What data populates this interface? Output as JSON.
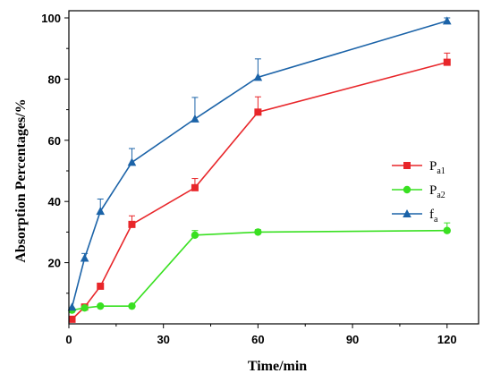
{
  "chart_data": {
    "type": "line",
    "xlabel": "Time/min",
    "ylabel": "Absorption Percentages/%",
    "xlim": [
      0,
      130
    ],
    "ylim": [
      0,
      100
    ],
    "x_ticks": [
      "0",
      "30",
      "60",
      "90",
      "120"
    ],
    "y_ticks": [
      "20",
      "40",
      "60",
      "80",
      "100"
    ],
    "legend_position": "right",
    "series": [
      {
        "name": "P",
        "subscript": "a1",
        "color": "#e8262a",
        "marker": "square",
        "x": [
          1,
          5,
          10,
          20,
          40,
          60,
          120
        ],
        "y": [
          1.5,
          5.5,
          12.3,
          32.5,
          44.5,
          69.2,
          85.5
        ],
        "error": [
          0,
          0.5,
          0,
          2.8,
          3.0,
          5.0,
          3.0
        ]
      },
      {
        "name": "P",
        "subscript": "a2",
        "color": "#39e021",
        "marker": "circle",
        "x": [
          1,
          5,
          10,
          20,
          40,
          60,
          120
        ],
        "y": [
          4.5,
          5.2,
          5.8,
          5.8,
          29.0,
          30.0,
          30.5
        ],
        "error": [
          0,
          0,
          0,
          0,
          1.5,
          0.8,
          2.5
        ]
      },
      {
        "name": "f",
        "subscript": "a",
        "color": "#1b63a8",
        "marker": "triangle",
        "x": [
          1,
          5,
          10,
          20,
          40,
          60,
          120
        ],
        "y": [
          5.5,
          21.5,
          36.8,
          52.8,
          67.0,
          80.6,
          99.0
        ],
        "error": [
          0,
          1.5,
          4.0,
          4.5,
          7.0,
          6.0,
          1.0
        ]
      }
    ]
  }
}
